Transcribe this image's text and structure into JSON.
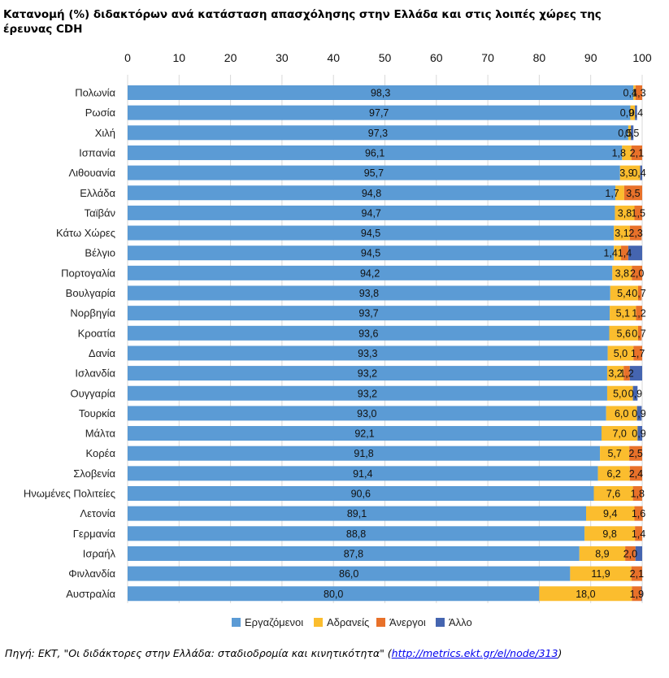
{
  "title": "Κατανομή (%) διδακτόρων ανά κατάσταση απασχόλησης  στην Ελλάδα και στις λοιπές χώρες της έρευνας CDH",
  "source": {
    "prefix": "Πηγή: ΕΚΤ, \"Οι διδάκτορες στην Ελλάδα: σταδιοδρομία και κινητικότητα\" (",
    "link": "http://metrics.ekt.gr/el/node/313",
    "suffix": ")"
  },
  "chart_data": {
    "type": "bar",
    "orientation": "horizontal",
    "stacked": true,
    "xlim": [
      0,
      100
    ],
    "xticks": [
      0,
      10,
      20,
      30,
      40,
      50,
      60,
      70,
      80,
      90,
      100
    ],
    "xaxis_position": "top",
    "legend_position": "bottom",
    "highlight_category": "Ελλάδα",
    "highlight_color": "#3d6eb4",
    "categories": [
      "Πολωνία",
      "Ρωσία",
      "Χιλή",
      "Ισπανία",
      "Λιθουανία",
      "Ελλάδα",
      "Ταϊβάν",
      "Κάτω Χώρες",
      "Βέλγιο",
      "Πορτογαλία",
      "Βουλγαρία",
      "Νορβηγία",
      "Κροατία",
      "Δανία",
      "Ισλανδία",
      "Ουγγαρία",
      "Τουρκία",
      "Μάλτα",
      "Κορέα",
      "Σλοβενία",
      "Ηνωμένες Πολιτείες",
      "Λετονία",
      "Γερμανία",
      "Ισραήλ",
      "Φινλανδία",
      "Αυστραλία"
    ],
    "series": [
      {
        "name": "Εργαζόμενοι",
        "color": "#5b9bd5",
        "values": [
          98.3,
          97.7,
          97.3,
          96.1,
          95.7,
          94.8,
          94.7,
          94.5,
          94.5,
          94.2,
          93.8,
          93.7,
          93.6,
          93.3,
          93.2,
          93.2,
          93.0,
          92.1,
          91.8,
          91.4,
          90.6,
          89.1,
          88.8,
          87.8,
          86.0,
          80.0
        ],
        "labels": [
          "98,3",
          "97,7",
          "97,3",
          "96,1",
          "95,7",
          "94,8",
          "94,7",
          "94,5",
          "94,5",
          "94,2",
          "93,8",
          "93,7",
          "93,6",
          "93,3",
          "93,2",
          "93,2",
          "93,0",
          "92,1",
          "91,8",
          "91,4",
          "90,6",
          "89,1",
          "88,8",
          "87,8",
          "86,0",
          "80,0"
        ]
      },
      {
        "name": "Αδρανείς",
        "color": "#fbbd2e",
        "values": [
          0.4,
          0.9,
          0.5,
          1.8,
          3.9,
          1.7,
          3.8,
          3.1,
          1.4,
          3.8,
          5.4,
          5.1,
          5.6,
          5.0,
          3.2,
          5.0,
          6.0,
          7.0,
          5.7,
          6.2,
          7.6,
          9.4,
          9.8,
          8.9,
          11.9,
          18.0
        ],
        "labels": [
          "0,4",
          "0,9",
          "0,5",
          "1,8",
          "3,9",
          "1,7",
          "3,8",
          "3,1",
          "1,4",
          "3,8",
          "5,4",
          "5,1",
          "5,6",
          "5,0",
          "3,2",
          "5,0",
          "6,0",
          "7,0",
          "5,7",
          "6,2",
          "7,6",
          "9,4",
          "9,8",
          "8,9",
          "11,9",
          "18,0"
        ]
      },
      {
        "name": "Άνεργοι",
        "color": "#e8712a",
        "values": [
          1.3,
          0.0,
          0.0,
          2.1,
          0.0,
          3.5,
          1.5,
          2.3,
          1.4,
          2.0,
          0.7,
          1.2,
          0.7,
          1.7,
          1.2,
          0.0,
          0.0,
          0.0,
          2.5,
          2.4,
          1.8,
          1.6,
          1.4,
          2.0,
          2.1,
          1.9
        ],
        "labels": [
          "1,3",
          "",
          "",
          "2,1",
          "",
          "3,5",
          "1,5",
          "2,3",
          "1,4",
          "2,0",
          "0,7",
          "1,2",
          "0,7",
          "1,7",
          "1,2",
          "",
          "",
          "",
          "2,5",
          "2,4",
          "1,8",
          "1,6",
          "1,4",
          "2,0",
          "2,1",
          "1,9"
        ]
      },
      {
        "name": "Άλλο",
        "color": "#4565b0",
        "values": [
          0.0,
          0.4,
          0.5,
          0.0,
          0.4,
          0.0,
          0.0,
          0.0,
          2.7,
          0.0,
          0.0,
          0.0,
          0.0,
          0.0,
          2.4,
          0.9,
          0.9,
          0.9,
          0.0,
          0.0,
          0.0,
          0.0,
          0.0,
          1.3,
          0.0,
          0.1
        ],
        "labels": [
          "",
          "0,4",
          "0,5",
          "",
          "0,4",
          "",
          "",
          "",
          "",
          "",
          "",
          "",
          "",
          "",
          "",
          "0,9",
          "0,9",
          "0,9",
          "",
          "",
          "",
          "",
          "",
          "",
          "",
          ""
        ]
      }
    ]
  }
}
